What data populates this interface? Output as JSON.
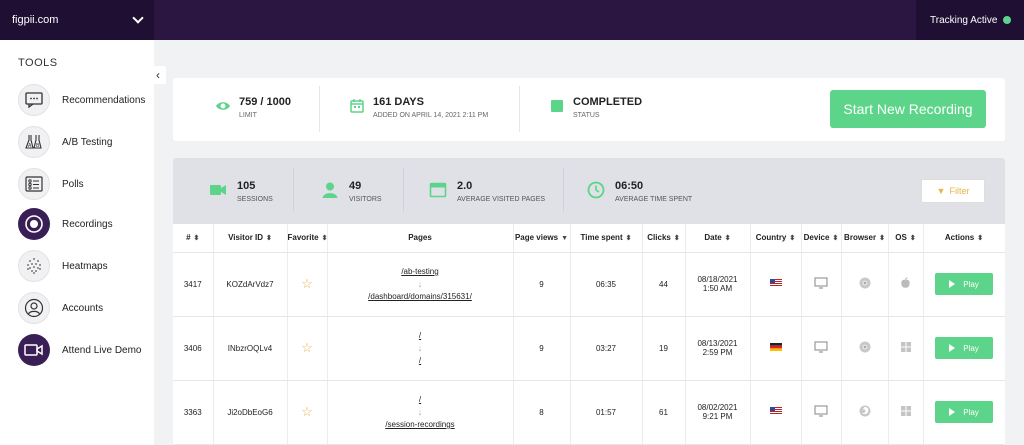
{
  "topbar": {
    "site": "figpii.com",
    "tracking": "Tracking Active",
    "tracking_color": "#5cd489"
  },
  "sidebar": {
    "title": "TOOLS",
    "collapse_icon": "chevron-left-icon",
    "items": [
      {
        "label": "Recommendations",
        "icon": "chat-icon"
      },
      {
        "label": "A/B Testing",
        "icon": "ab-test-icon"
      },
      {
        "label": "Polls",
        "icon": "poll-icon"
      },
      {
        "label": "Recordings",
        "icon": "record-icon",
        "active": true
      },
      {
        "label": "Heatmaps",
        "icon": "heatmap-icon"
      },
      {
        "label": "Accounts",
        "icon": "user-icon"
      },
      {
        "label": "Attend Live Demo",
        "icon": "video-camera-icon",
        "active": true
      }
    ]
  },
  "summary": {
    "limit_value": "759 / 1000",
    "limit_label": "LIMIT",
    "days_value": "161 DAYS",
    "days_label": "ADDED ON APRIL 14, 2021 2:11 PM",
    "status_value": "COMPLETED",
    "status_label": "STATUS",
    "start_button": "Start New Recording",
    "accent": "#5cd489"
  },
  "stats": {
    "sessions_value": "105",
    "sessions_label": "SESSIONS",
    "visitors_value": "49",
    "visitors_label": "VISITORS",
    "pages_value": "2.0",
    "pages_label": "AVERAGE VISITED PAGES",
    "time_value": "06:50",
    "time_label": "AVERAGE TIME SPENT",
    "filter": "Filter"
  },
  "table": {
    "headers": [
      "#",
      "Visitor ID",
      "Favorite",
      "Pages",
      "Page views",
      "Time spent",
      "Clicks",
      "Date",
      "Country",
      "Device",
      "Browser",
      "OS",
      "Actions"
    ],
    "rows": [
      {
        "id": "3417",
        "visitor": "KOZdArVdz7",
        "page_from": "/ab-testing",
        "page_to": "/dashboard/domains/315631/",
        "views": "9",
        "time": "06:35",
        "clicks": "44",
        "date": "08/18/2021",
        "time_of_day": "1:50 AM",
        "country": "us-flag",
        "device": "desktop-icon",
        "browser": "chrome-icon",
        "os": "apple-icon",
        "action": "Play"
      },
      {
        "id": "3406",
        "visitor": "INbzrOQLv4",
        "page_from": "/",
        "page_to": "/",
        "views": "9",
        "time": "03:27",
        "clicks": "19",
        "date": "08/13/2021",
        "time_of_day": "2:59 PM",
        "country": "de-flag",
        "device": "desktop-icon",
        "browser": "chrome-icon",
        "os": "windows-icon",
        "action": "Play"
      },
      {
        "id": "3363",
        "visitor": "Ji2oDbEoG6",
        "page_from": "/",
        "page_to": "/session-recordings",
        "views": "8",
        "time": "01:57",
        "clicks": "61",
        "date": "08/02/2021",
        "time_of_day": "9:21 PM",
        "country": "us-flag",
        "device": "desktop-icon",
        "browser": "firefox-icon",
        "os": "windows-icon",
        "action": "Play"
      }
    ]
  }
}
